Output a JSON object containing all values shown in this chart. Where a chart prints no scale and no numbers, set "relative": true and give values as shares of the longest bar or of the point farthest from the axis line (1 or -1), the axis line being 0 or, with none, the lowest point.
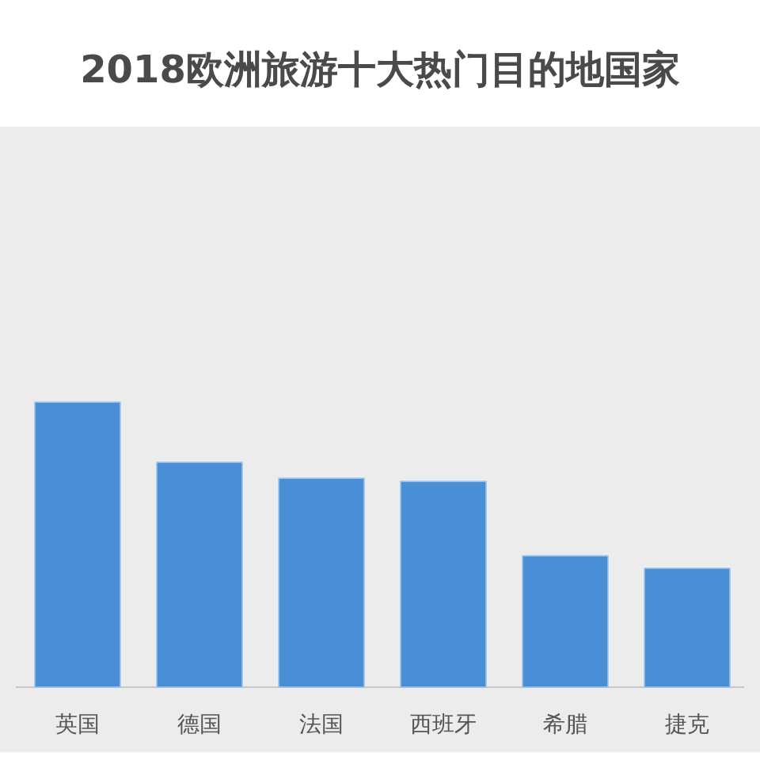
{
  "chart_data": {
    "type": "bar",
    "title": "2018欧洲旅游十大热门目的地国家",
    "relative": true,
    "color": "#4a8fd6",
    "categories": [
      "英国",
      "德国",
      "法国",
      "西班牙",
      "希腊",
      "捷克"
    ],
    "values": [
      1,
      0.789,
      0.733,
      0.722,
      0.461,
      0.417
    ]
  }
}
